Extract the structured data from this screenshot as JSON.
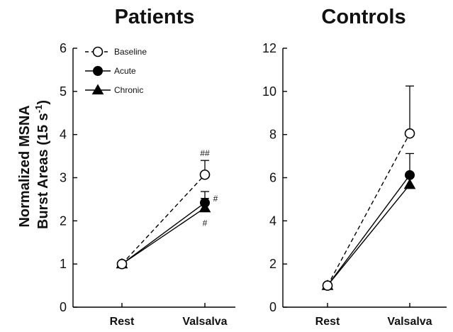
{
  "figure": {
    "ylabel_line1": "Normalized MSNA",
    "ylabel_line2_prefix": "Burst Areas (15 s",
    "ylabel_line2_sup": "-1",
    "ylabel_line2_suffix": ")"
  },
  "chart_data": [
    {
      "type": "line",
      "title": "Patients",
      "xlabel": "",
      "ylabel": "Normalized MSNA Burst Areas (15 s-1)",
      "categories": [
        "Rest",
        "Valsalva"
      ],
      "ylim": [
        0,
        6
      ],
      "yticks": [
        "0",
        "1",
        "2",
        "3",
        "4",
        "5",
        "6"
      ],
      "grid": false,
      "legend_position": "top-left",
      "series": [
        {
          "name": "Baseline",
          "marker": "open-circle",
          "dash": "dashed",
          "values": [
            1.0,
            3.07
          ],
          "error": [
            0,
            0.33
          ]
        },
        {
          "name": "Acute",
          "marker": "filled-circle",
          "dash": "solid",
          "values": [
            1.0,
            2.42
          ],
          "error": [
            0,
            0.26
          ]
        },
        {
          "name": "Chronic",
          "marker": "filled-triangle",
          "dash": "solid",
          "values": [
            1.0,
            2.3
          ],
          "error": [
            0,
            0.22
          ]
        }
      ],
      "annotations": [
        {
          "text": "##",
          "category": "Valsalva",
          "series": "Baseline",
          "anchor": "above-error"
        },
        {
          "text": "#",
          "category": "Valsalva",
          "series": "Acute",
          "anchor": "right"
        },
        {
          "text": "#",
          "category": "Valsalva",
          "series": "Chronic",
          "anchor": "below-error"
        }
      ]
    },
    {
      "type": "line",
      "title": "Controls",
      "xlabel": "",
      "ylabel": "",
      "categories": [
        "Rest",
        "Valsalva"
      ],
      "ylim": [
        0,
        12
      ],
      "yticks": [
        "0",
        "2",
        "4",
        "6",
        "8",
        "10",
        "12"
      ],
      "grid": false,
      "legend_position": "",
      "series": [
        {
          "name": "Baseline",
          "marker": "open-circle",
          "dash": "dashed",
          "values": [
            1.0,
            8.05
          ],
          "error": [
            0,
            2.2
          ]
        },
        {
          "name": "Acute",
          "marker": "filled-circle",
          "dash": "solid",
          "values": [
            1.0,
            6.12
          ],
          "error": [
            0,
            1.0
          ]
        },
        {
          "name": "Chronic",
          "marker": "filled-triangle",
          "dash": "solid",
          "values": [
            1.0,
            5.68
          ],
          "error": [
            0,
            0.35
          ]
        }
      ],
      "annotations": []
    }
  ]
}
